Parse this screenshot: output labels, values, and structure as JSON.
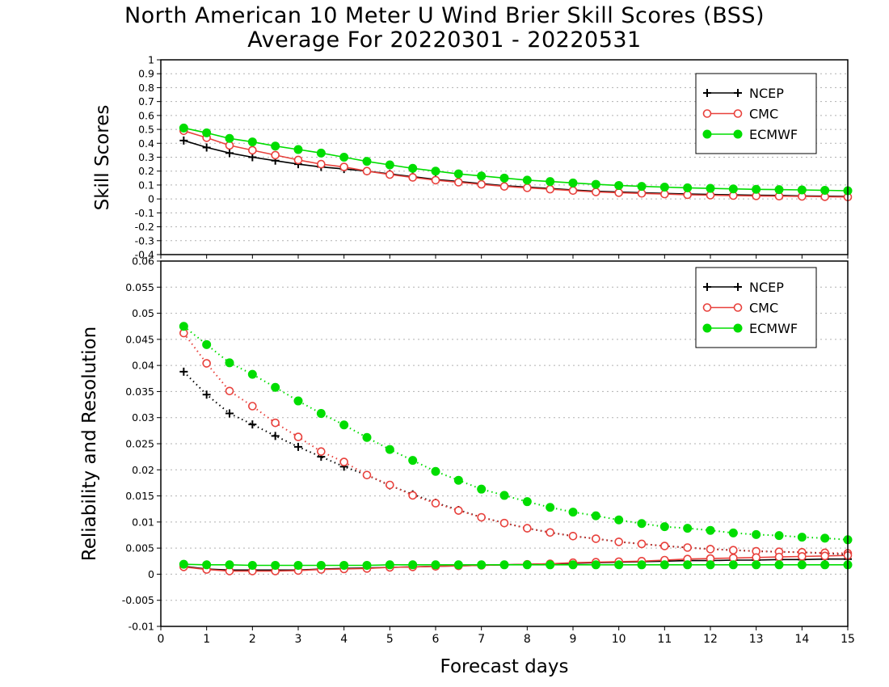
{
  "title_line1": "North American 10 Meter U Wind Brier Skill Scores (BSS)",
  "title_line2": "Average For 20220301 - 20220531",
  "xlabel": "Forecast days",
  "colors": {
    "NCEP": "#000000",
    "CMC": "#e8413c",
    "ECMWF": "#00dd00"
  },
  "chart_data": [
    {
      "type": "line",
      "ylabel": "Skill Scores",
      "ylim": [
        -0.4,
        1
      ],
      "yticks": [
        "-0.4",
        "-0.3",
        "-0.2",
        "-0.1",
        "0",
        "0.1",
        "0.2",
        "0.3",
        "0.4",
        "0.5",
        "0.6",
        "0.7",
        "0.8",
        "0.9",
        "1"
      ],
      "xlim": [
        0,
        15
      ],
      "xticks": [
        "0",
        "1",
        "2",
        "3",
        "4",
        "5",
        "6",
        "7",
        "8",
        "9",
        "10",
        "11",
        "12",
        "13",
        "14",
        "15"
      ],
      "grid": true,
      "legend": "top-right",
      "x": [
        0.5,
        1,
        1.5,
        2,
        2.5,
        3,
        3.5,
        4,
        4.5,
        5,
        5.5,
        6,
        6.5,
        7,
        7.5,
        8,
        8.5,
        9,
        9.5,
        10,
        10.5,
        11,
        11.5,
        12,
        12.5,
        13,
        13.5,
        14,
        14.5,
        15
      ],
      "series": [
        {
          "name": "NCEP",
          "style": "solid",
          "marker": "plus",
          "values": [
            0.42,
            0.37,
            0.33,
            0.3,
            0.275,
            0.25,
            0.23,
            0.215,
            0.2,
            0.18,
            0.16,
            0.14,
            0.125,
            0.11,
            0.095,
            0.085,
            0.075,
            0.065,
            0.055,
            0.05,
            0.045,
            0.04,
            0.035,
            0.032,
            0.03,
            0.027,
            0.025,
            0.022,
            0.02,
            0.018
          ]
        },
        {
          "name": "CMC",
          "style": "solid",
          "marker": "open-circle",
          "values": [
            0.49,
            0.44,
            0.385,
            0.35,
            0.315,
            0.28,
            0.25,
            0.23,
            0.2,
            0.175,
            0.155,
            0.135,
            0.12,
            0.105,
            0.09,
            0.08,
            0.07,
            0.06,
            0.05,
            0.045,
            0.04,
            0.035,
            0.03,
            0.027,
            0.024,
            0.022,
            0.02,
            0.018,
            0.016,
            0.014
          ]
        },
        {
          "name": "ECMWF",
          "style": "solid",
          "marker": "filled-circle",
          "values": [
            0.51,
            0.475,
            0.435,
            0.41,
            0.38,
            0.355,
            0.33,
            0.3,
            0.27,
            0.245,
            0.22,
            0.2,
            0.18,
            0.165,
            0.15,
            0.135,
            0.125,
            0.115,
            0.105,
            0.097,
            0.09,
            0.085,
            0.08,
            0.076,
            0.072,
            0.069,
            0.067,
            0.065,
            0.062,
            0.059
          ]
        }
      ]
    },
    {
      "type": "line",
      "ylabel": "Reliability and Resolution",
      "ylim": [
        -0.01,
        0.06
      ],
      "yticks": [
        "-0.01",
        "-0.005",
        "0",
        "0.005",
        "0.01",
        "0.015",
        "0.02",
        "0.025",
        "0.03",
        "0.035",
        "0.04",
        "0.045",
        "0.05",
        "0.055",
        "0.06"
      ],
      "xlim": [
        0,
        15
      ],
      "xticks": [
        "0",
        "1",
        "2",
        "3",
        "4",
        "5",
        "6",
        "7",
        "8",
        "9",
        "10",
        "11",
        "12",
        "13",
        "14",
        "15"
      ],
      "grid": true,
      "legend": "top-right",
      "x": [
        0.5,
        1,
        1.5,
        2,
        2.5,
        3,
        3.5,
        4,
        4.5,
        5,
        5.5,
        6,
        6.5,
        7,
        7.5,
        8,
        8.5,
        9,
        9.5,
        10,
        10.5,
        11,
        11.5,
        12,
        12.5,
        13,
        13.5,
        14,
        14.5,
        15
      ],
      "series": [
        {
          "name": "NCEP",
          "style": "dotted",
          "marker": "plus",
          "role": "resolution",
          "values": [
            0.0388,
            0.0344,
            0.0308,
            0.0287,
            0.0265,
            0.0244,
            0.0225,
            0.0206,
            0.019,
            0.017,
            0.0153,
            0.0137,
            0.0123,
            0.0109,
            0.0098,
            0.0088,
            0.008,
            0.0073,
            0.0068,
            0.0062,
            0.0058,
            0.0054,
            0.0051,
            0.0048,
            0.0046,
            0.0044,
            0.0043,
            0.0042,
            0.004,
            0.0038
          ]
        },
        {
          "name": "CMC",
          "style": "dotted",
          "marker": "open-circle",
          "role": "resolution",
          "values": [
            0.0462,
            0.0404,
            0.0351,
            0.0322,
            0.029,
            0.0263,
            0.0235,
            0.0215,
            0.019,
            0.0171,
            0.0151,
            0.0136,
            0.0122,
            0.0109,
            0.0098,
            0.0088,
            0.008,
            0.0073,
            0.0068,
            0.0062,
            0.0058,
            0.0054,
            0.0051,
            0.0048,
            0.0046,
            0.0044,
            0.0043,
            0.0042,
            0.0041,
            0.004
          ]
        },
        {
          "name": "ECMWF",
          "style": "dotted",
          "marker": "filled-circle",
          "role": "resolution",
          "values": [
            0.0475,
            0.044,
            0.0405,
            0.0383,
            0.0358,
            0.0332,
            0.0308,
            0.0286,
            0.0262,
            0.0239,
            0.0218,
            0.0197,
            0.018,
            0.0163,
            0.0151,
            0.0139,
            0.0128,
            0.0119,
            0.0112,
            0.0104,
            0.0097,
            0.0091,
            0.0088,
            0.0084,
            0.0079,
            0.0076,
            0.0074,
            0.0071,
            0.0069,
            0.0066
          ]
        },
        {
          "name": "NCEP",
          "style": "solid",
          "marker": "plus",
          "role": "reliability",
          "values": [
            0.0015,
            0.001,
            0.0008,
            0.0008,
            0.0008,
            0.0008,
            0.001,
            0.0011,
            0.0012,
            0.0013,
            0.0014,
            0.0015,
            0.0016,
            0.0017,
            0.0018,
            0.0019,
            0.002,
            0.0021,
            0.0022,
            0.0023,
            0.0024,
            0.0025,
            0.0026,
            0.0026,
            0.0027,
            0.0027,
            0.0028,
            0.0028,
            0.0029,
            0.0029
          ]
        },
        {
          "name": "CMC",
          "style": "solid",
          "marker": "open-circle",
          "role": "reliability",
          "values": [
            0.0014,
            0.0009,
            0.0006,
            0.0006,
            0.0006,
            0.0007,
            0.0009,
            0.001,
            0.0011,
            0.0013,
            0.0014,
            0.0015,
            0.0016,
            0.0017,
            0.0018,
            0.0019,
            0.002,
            0.0022,
            0.0023,
            0.0024,
            0.0025,
            0.0027,
            0.0029,
            0.003,
            0.0031,
            0.0032,
            0.0033,
            0.0034,
            0.0035,
            0.0036
          ]
        },
        {
          "name": "ECMWF",
          "style": "solid",
          "marker": "filled-circle",
          "role": "reliability",
          "values": [
            0.0019,
            0.0018,
            0.0018,
            0.0017,
            0.0017,
            0.0017,
            0.0017,
            0.0017,
            0.0017,
            0.0018,
            0.0018,
            0.0018,
            0.0018,
            0.0018,
            0.0018,
            0.0018,
            0.0018,
            0.0018,
            0.0018,
            0.0018,
            0.0018,
            0.0018,
            0.0018,
            0.0018,
            0.0018,
            0.0018,
            0.0018,
            0.0018,
            0.0018,
            0.0018
          ]
        }
      ]
    }
  ],
  "legends": [
    {
      "entries": [
        "NCEP",
        "CMC",
        "ECMWF"
      ]
    },
    {
      "entries": [
        "NCEP",
        "CMC",
        "ECMWF"
      ]
    }
  ]
}
